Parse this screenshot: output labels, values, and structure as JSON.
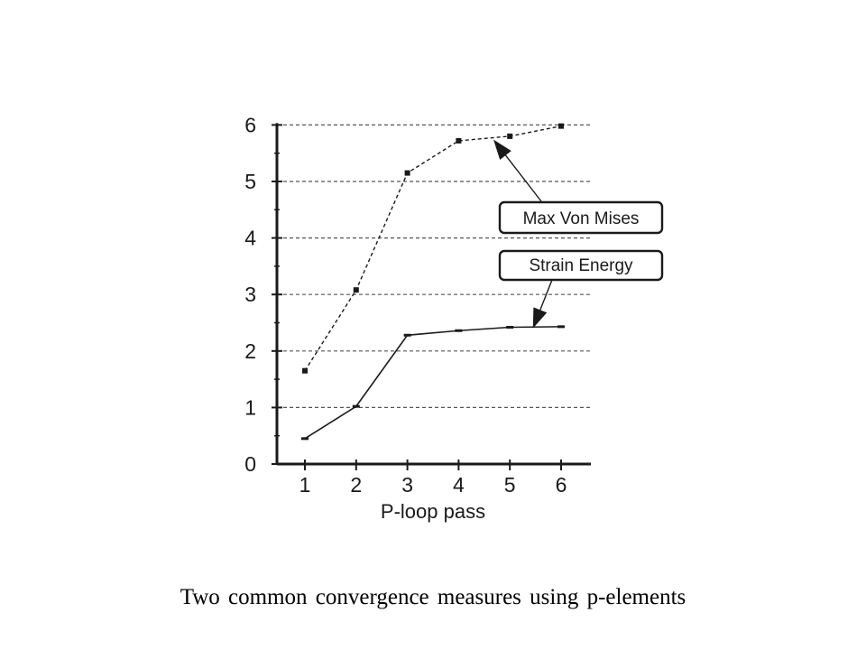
{
  "caption": "Two common convergence measures using p-elements",
  "colors": {
    "ink": "#1a1a1a",
    "background": "#ffffff"
  },
  "chart_data": {
    "type": "line",
    "title": "",
    "xlabel": "P-loop pass",
    "ylabel": "",
    "x": [
      1,
      2,
      3,
      4,
      5,
      6
    ],
    "xticks": [
      "1",
      "2",
      "3",
      "4",
      "5",
      "6"
    ],
    "yticks": [
      "0",
      "1",
      "2",
      "3",
      "4",
      "5",
      "6"
    ],
    "xlim": [
      0.5,
      6.6
    ],
    "ylim": [
      0,
      6
    ],
    "grid": "horizontal dashed",
    "series": [
      {
        "name": "Max Von Mises",
        "values": [
          1.65,
          3.08,
          5.15,
          5.72,
          5.8,
          5.98
        ],
        "line_style": "dashed"
      },
      {
        "name": "Strain Energy",
        "values": [
          0.45,
          1.02,
          2.28,
          2.36,
          2.42,
          2.43
        ],
        "line_style": "solid"
      }
    ],
    "annotations": [
      "Max Von Mises",
      "Strain Energy"
    ]
  }
}
